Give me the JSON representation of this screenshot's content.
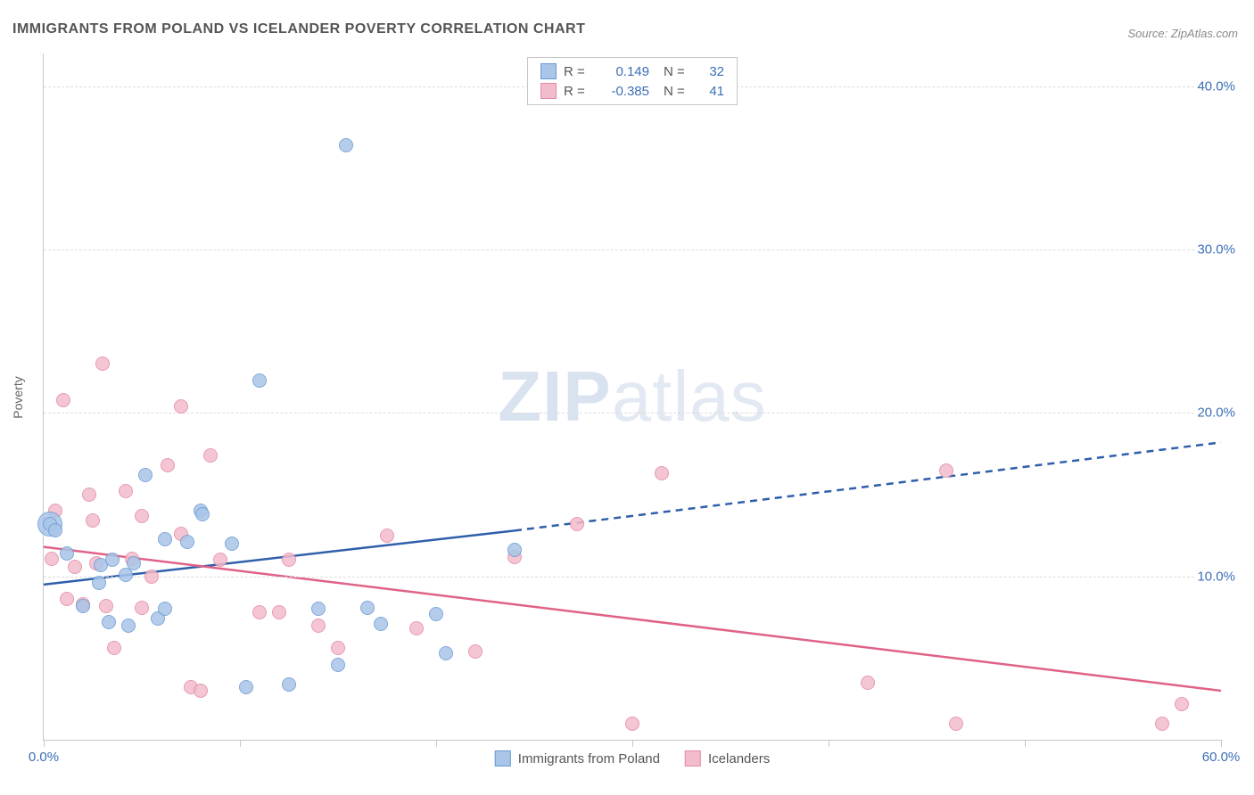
{
  "title": "IMMIGRANTS FROM POLAND VS ICELANDER POVERTY CORRELATION CHART",
  "source": "Source: ZipAtlas.com",
  "ylabel": "Poverty",
  "watermark_bold": "ZIP",
  "watermark_rest": "atlas",
  "chart": {
    "type": "scatter",
    "xlim": [
      0,
      60
    ],
    "ylim": [
      0,
      42
    ],
    "x_ticks": [
      0,
      10,
      20,
      30,
      40,
      50,
      60
    ],
    "x_tick_labels": {
      "0": "0.0%",
      "60": "60.0%"
    },
    "y_grid": [
      10,
      20,
      30,
      40
    ],
    "y_tick_labels": {
      "10": "10.0%",
      "20": "20.0%",
      "30": "30.0%",
      "40": "40.0%"
    },
    "background_color": "#ffffff",
    "grid_color": "#dddddd",
    "axis_color": "#c6c6c6",
    "tick_label_color": "#3b6fb6",
    "marker_radius": 8,
    "marker_stroke_width": 1.5,
    "marker_fill_opacity": 0.25,
    "trend_line_width": 2.5
  },
  "series": {
    "poland": {
      "label": "Immigrants from Poland",
      "color_stroke": "#6a9ad4",
      "color_fill": "#a9c5e8",
      "trend_color": "#2f5fab",
      "R": "0.149",
      "N": "32",
      "trend": {
        "x1": 0,
        "y1": 9.5,
        "x2": 24,
        "y2": 12.8,
        "x_dash_end": 60,
        "y_dash_end": 18.2
      },
      "points": [
        {
          "x": 0.3,
          "y": 13.2,
          "r": 14
        },
        {
          "x": 0.3,
          "y": 13.2
        },
        {
          "x": 0.6,
          "y": 12.8
        },
        {
          "x": 1.2,
          "y": 11.4
        },
        {
          "x": 2.0,
          "y": 8.2
        },
        {
          "x": 2.8,
          "y": 9.6
        },
        {
          "x": 2.9,
          "y": 10.7
        },
        {
          "x": 3.3,
          "y": 7.2
        },
        {
          "x": 3.5,
          "y": 11.0
        },
        {
          "x": 4.2,
          "y": 10.1
        },
        {
          "x": 4.3,
          "y": 7.0
        },
        {
          "x": 4.6,
          "y": 10.8
        },
        {
          "x": 5.2,
          "y": 16.2
        },
        {
          "x": 5.8,
          "y": 7.4
        },
        {
          "x": 6.2,
          "y": 12.3
        },
        {
          "x": 6.2,
          "y": 8.0
        },
        {
          "x": 7.3,
          "y": 12.1
        },
        {
          "x": 8.0,
          "y": 14.0
        },
        {
          "x": 8.1,
          "y": 13.8
        },
        {
          "x": 9.6,
          "y": 12.0
        },
        {
          "x": 10.3,
          "y": 3.2
        },
        {
          "x": 11.0,
          "y": 22.0
        },
        {
          "x": 12.5,
          "y": 3.4
        },
        {
          "x": 14.0,
          "y": 8.0
        },
        {
          "x": 15.4,
          "y": 36.4
        },
        {
          "x": 15.0,
          "y": 4.6
        },
        {
          "x": 16.5,
          "y": 8.1
        },
        {
          "x": 17.2,
          "y": 7.1
        },
        {
          "x": 20.0,
          "y": 7.7
        },
        {
          "x": 20.5,
          "y": 5.3
        },
        {
          "x": 24.0,
          "y": 11.6
        }
      ]
    },
    "icelanders": {
      "label": "Icelanders",
      "color_stroke": "#e38aa4",
      "color_fill": "#f3bccb",
      "trend_color": "#e06287",
      "R": "-0.385",
      "N": "41",
      "trend": {
        "x1": 0,
        "y1": 11.8,
        "x2": 60,
        "y2": 3.0
      },
      "points": [
        {
          "x": 0.4,
          "y": 11.1
        },
        {
          "x": 0.6,
          "y": 14.0
        },
        {
          "x": 1.0,
          "y": 20.8
        },
        {
          "x": 1.2,
          "y": 8.6
        },
        {
          "x": 1.6,
          "y": 10.6
        },
        {
          "x": 2.0,
          "y": 8.3
        },
        {
          "x": 2.3,
          "y": 15.0
        },
        {
          "x": 2.5,
          "y": 13.4
        },
        {
          "x": 2.7,
          "y": 10.8
        },
        {
          "x": 3.0,
          "y": 23.0
        },
        {
          "x": 3.2,
          "y": 8.2
        },
        {
          "x": 3.6,
          "y": 5.6
        },
        {
          "x": 4.2,
          "y": 15.2
        },
        {
          "x": 4.5,
          "y": 11.1
        },
        {
          "x": 5.0,
          "y": 13.7
        },
        {
          "x": 5.0,
          "y": 8.1
        },
        {
          "x": 5.5,
          "y": 10.0
        },
        {
          "x": 6.3,
          "y": 16.8
        },
        {
          "x": 7.0,
          "y": 12.6
        },
        {
          "x": 7.0,
          "y": 20.4
        },
        {
          "x": 7.5,
          "y": 3.2
        },
        {
          "x": 8.0,
          "y": 3.0
        },
        {
          "x": 8.5,
          "y": 17.4
        },
        {
          "x": 9.0,
          "y": 11.0
        },
        {
          "x": 11.0,
          "y": 7.8
        },
        {
          "x": 12.0,
          "y": 7.8
        },
        {
          "x": 12.5,
          "y": 11.0
        },
        {
          "x": 14.0,
          "y": 7.0
        },
        {
          "x": 15.0,
          "y": 5.6
        },
        {
          "x": 17.5,
          "y": 12.5
        },
        {
          "x": 19.0,
          "y": 6.8
        },
        {
          "x": 22.0,
          "y": 5.4
        },
        {
          "x": 24.0,
          "y": 11.2
        },
        {
          "x": 27.2,
          "y": 13.2
        },
        {
          "x": 30.0,
          "y": 1.0
        },
        {
          "x": 31.5,
          "y": 16.3
        },
        {
          "x": 42.0,
          "y": 3.5
        },
        {
          "x": 46.0,
          "y": 16.5
        },
        {
          "x": 46.5,
          "y": 1.0
        },
        {
          "x": 57.0,
          "y": 1.0
        },
        {
          "x": 58.0,
          "y": 2.2
        }
      ]
    }
  }
}
